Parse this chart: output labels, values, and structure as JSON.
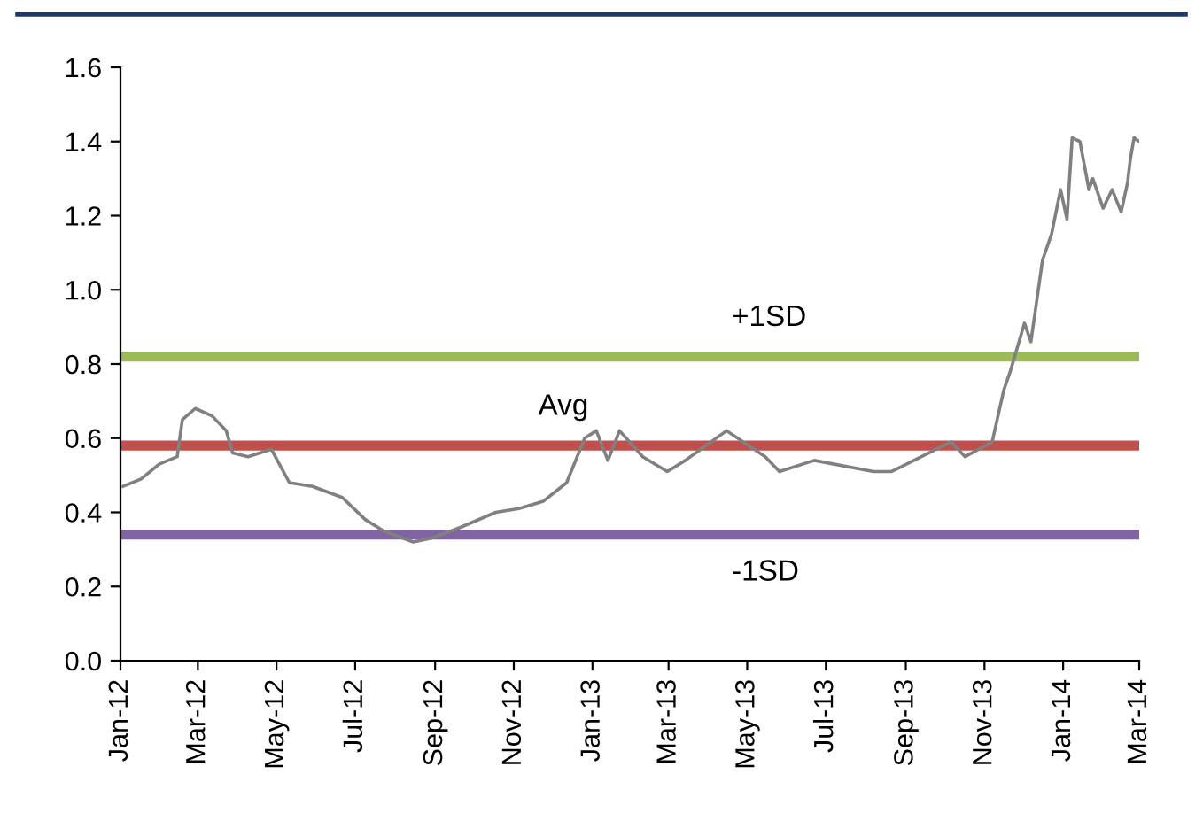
{
  "chart_data": {
    "type": "line",
    "grid": false,
    "legend": false,
    "marker": "none",
    "line_style": "solid",
    "xlim": [
      "2012-01-01",
      "2014-03-01"
    ],
    "xticks": [
      {
        "value": "2012-01-01",
        "label": "Jan-12"
      },
      {
        "value": "2012-03-01",
        "label": "Mar-12"
      },
      {
        "value": "2012-05-01",
        "label": "May-12"
      },
      {
        "value": "2012-07-01",
        "label": "Jul-12"
      },
      {
        "value": "2012-09-01",
        "label": "Sep-12"
      },
      {
        "value": "2012-11-01",
        "label": "Nov-12"
      },
      {
        "value": "2013-01-01",
        "label": "Jan-13"
      },
      {
        "value": "2013-03-01",
        "label": "Mar-13"
      },
      {
        "value": "2013-05-01",
        "label": "May-13"
      },
      {
        "value": "2013-07-01",
        "label": "Jul-13"
      },
      {
        "value": "2013-09-01",
        "label": "Sep-13"
      },
      {
        "value": "2013-11-01",
        "label": "Nov-13"
      },
      {
        "value": "2014-01-01",
        "label": "Jan-14"
      },
      {
        "value": "2014-03-01",
        "label": "Mar-14"
      }
    ],
    "ylim": [
      0,
      1.6
    ],
    "yticks": [
      {
        "value": 0,
        "label": "0.0"
      },
      {
        "value": 0.2,
        "label": "0.2"
      },
      {
        "value": 0.4,
        "label": "0.4"
      },
      {
        "value": 0.6,
        "label": "0.6"
      },
      {
        "value": 0.8,
        "label": "0.8"
      },
      {
        "value": 1.0,
        "label": "1.0"
      },
      {
        "value": 1.2,
        "label": "1.2"
      },
      {
        "value": 1.4,
        "label": "1.4"
      },
      {
        "value": 1.6,
        "label": "1.6"
      }
    ],
    "x": [
      "2012-01-03",
      "2012-01-17",
      "2012-01-31",
      "2012-02-14",
      "2012-02-18",
      "2012-02-28",
      "2012-03-12",
      "2012-03-23",
      "2012-03-28",
      "2012-04-09",
      "2012-04-27",
      "2012-05-11",
      "2012-05-29",
      "2012-06-21",
      "2012-07-09",
      "2012-07-23",
      "2012-08-15",
      "2012-08-29",
      "2012-09-21",
      "2012-10-18",
      "2012-11-05",
      "2012-11-24",
      "2012-12-12",
      "2012-12-26",
      "2013-01-04",
      "2013-01-13",
      "2013-01-22",
      "2013-02-09",
      "2013-02-28",
      "2013-03-14",
      "2013-04-15",
      "2013-05-15",
      "2013-05-26",
      "2013-06-22",
      "2013-08-07",
      "2013-08-21",
      "2013-10-06",
      "2013-10-17",
      "2013-11-07",
      "2013-11-16",
      "2013-11-21",
      "2013-12-02",
      "2013-12-07",
      "2013-12-16",
      "2013-12-23",
      "2013-12-30",
      "2014-01-04",
      "2014-01-08",
      "2014-01-14",
      "2014-01-21",
      "2014-01-24",
      "2014-02-01",
      "2014-02-08",
      "2014-02-15",
      "2014-02-20",
      "2014-02-22",
      "2014-02-25",
      "2014-03-01"
    ],
    "series": [
      {
        "color": "#808080",
        "values": [
          0.47,
          0.49,
          0.53,
          0.55,
          0.65,
          0.68,
          0.66,
          0.62,
          0.56,
          0.55,
          0.57,
          0.48,
          0.47,
          0.44,
          0.38,
          0.35,
          0.32,
          0.33,
          0.36,
          0.4,
          0.41,
          0.43,
          0.48,
          0.6,
          0.62,
          0.54,
          0.62,
          0.55,
          0.51,
          0.54,
          0.62,
          0.55,
          0.51,
          0.54,
          0.51,
          0.51,
          0.59,
          0.55,
          0.59,
          0.73,
          0.78,
          0.91,
          0.86,
          1.08,
          1.15,
          1.27,
          1.19,
          1.41,
          1.4,
          1.27,
          1.3,
          1.22,
          1.27,
          1.21,
          1.29,
          1.35,
          1.41,
          1.4
        ]
      }
    ],
    "ref_lines": [
      {
        "axis": "y",
        "value": 0.82,
        "label": "+1SD",
        "color": "#9bbb59",
        "line_style": "solid"
      },
      {
        "axis": "y",
        "value": 0.58,
        "label": "Avg",
        "color": "#c0504d",
        "line_style": "solid"
      },
      {
        "axis": "y",
        "value": 0.34,
        "label": "-1SD",
        "color": "#8064a2",
        "line_style": "solid"
      }
    ]
  }
}
